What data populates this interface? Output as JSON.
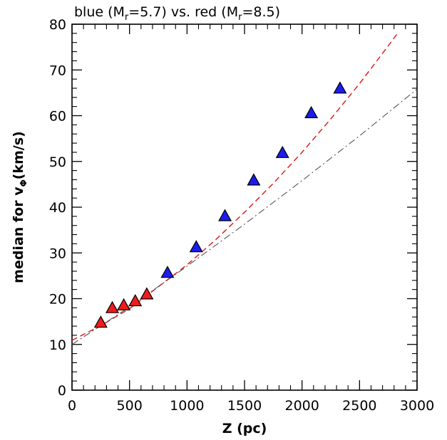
{
  "chart_data": {
    "type": "scatter",
    "title": {
      "prefix": "blue (M",
      "sub1": "r",
      "mid": "=5.7) vs. red (M",
      "sub2": "r",
      "suffix": "=8.5)"
    },
    "xlabel": "Z (pc)",
    "ylabel": {
      "prefix": "median for v",
      "sub": "Φ",
      "suffix": "(km/s)"
    },
    "xlim": [
      0,
      3000
    ],
    "ylim": [
      0,
      80
    ],
    "x_ticks": [
      0,
      500,
      1000,
      1500,
      2000,
      2500,
      3000
    ],
    "y_ticks": [
      0,
      10,
      20,
      30,
      40,
      50,
      60,
      70,
      80
    ],
    "grid": false,
    "series": [
      {
        "marker": "triangle",
        "color": "#ee1c1c",
        "points": [
          {
            "x": 250,
            "y": 14.8
          },
          {
            "x": 350,
            "y": 18.0
          },
          {
            "x": 450,
            "y": 18.6
          },
          {
            "x": 550,
            "y": 19.5
          },
          {
            "x": 650,
            "y": 21.0
          }
        ]
      },
      {
        "marker": "triangle",
        "color": "#1c1cee",
        "points": [
          {
            "x": 830,
            "y": 25.7
          },
          {
            "x": 1080,
            "y": 31.3
          },
          {
            "x": 1330,
            "y": 38.1
          },
          {
            "x": 1580,
            "y": 45.9
          },
          {
            "x": 1830,
            "y": 51.9
          },
          {
            "x": 2080,
            "y": 60.6
          },
          {
            "x": 2330,
            "y": 66.0
          }
        ]
      }
    ],
    "curves": [
      {
        "style": "dashed",
        "color": "#dd2222",
        "x": [
          0,
          250,
          500,
          750,
          1000,
          1250,
          1500,
          1750,
          2000,
          2250,
          2500,
          2750,
          2830
        ],
        "y": [
          10.9,
          14.1,
          17.8,
          22.6,
          27.4,
          32.9,
          38.9,
          45.2,
          52.0,
          59.3,
          67.0,
          75.3,
          78.0
        ]
      },
      {
        "style": "dashdot",
        "color": "#555555",
        "x": [
          0,
          500,
          1000,
          1500,
          2000,
          2500,
          3000
        ],
        "y": [
          10.0,
          18.2,
          27.1,
          36.3,
          45.8,
          55.6,
          65.8
        ]
      }
    ]
  }
}
